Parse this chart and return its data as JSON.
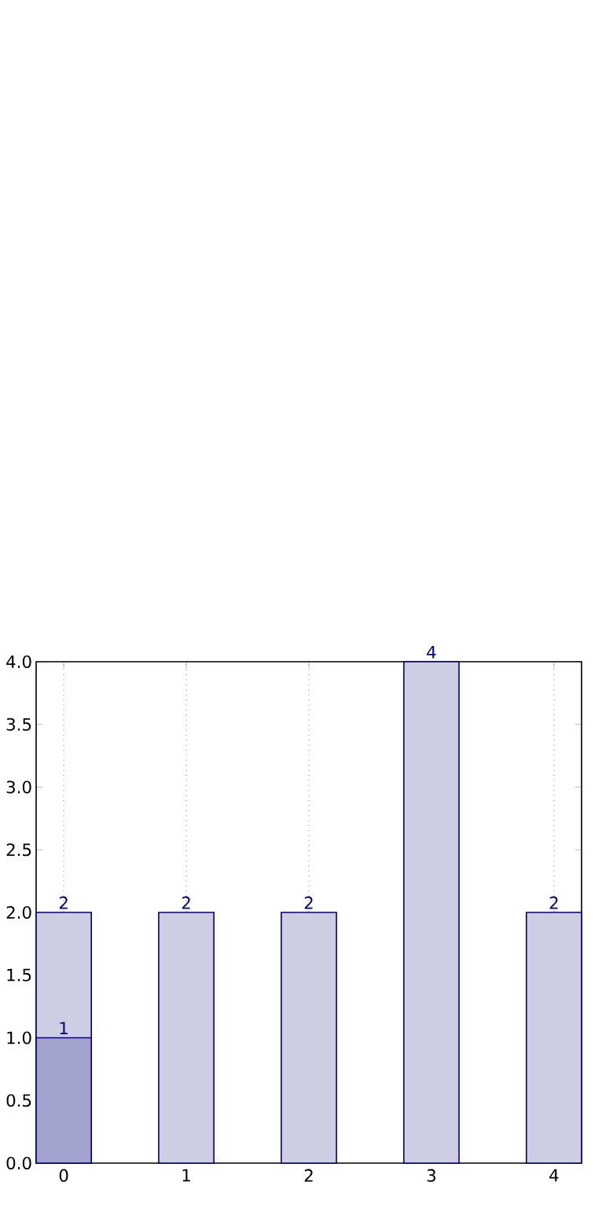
{
  "chart_data": {
    "type": "bar",
    "categories": [
      "0",
      "1",
      "2",
      "3",
      "4"
    ],
    "series": [
      {
        "color": "#cdcde4",
        "values": [
          2,
          2,
          2,
          4,
          2
        ]
      },
      {
        "color": "#a3a3d0",
        "values": [
          1,
          null,
          null,
          null,
          null
        ]
      }
    ],
    "ylim": [
      0,
      4
    ],
    "yticks": [
      {
        "value": 0,
        "label": "0.0"
      },
      {
        "value": 0.5,
        "label": "0.5"
      },
      {
        "value": 1,
        "label": "1.0"
      },
      {
        "value": 1.5,
        "label": "1.5"
      },
      {
        "value": 2,
        "label": "2.0"
      },
      {
        "value": 2.5,
        "label": "2.5"
      },
      {
        "value": 3,
        "label": "3.0"
      },
      {
        "value": 3.5,
        "label": "3.5"
      },
      {
        "value": 4,
        "label": "4.0"
      }
    ],
    "grid": "x",
    "data_labels": true
  }
}
